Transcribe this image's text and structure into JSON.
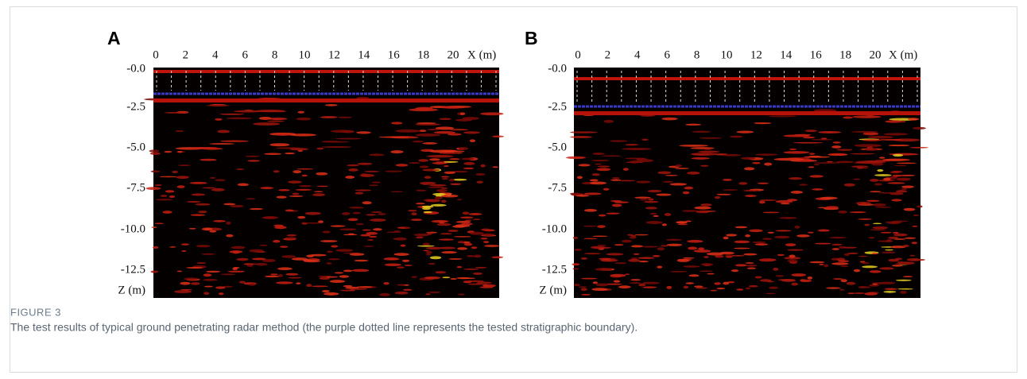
{
  "figure": {
    "panels": [
      {
        "label": "A",
        "x_ticks": [
          "0",
          "2",
          "4",
          "6",
          "8",
          "10",
          "12",
          "14",
          "16",
          "18",
          "20"
        ],
        "x_axis_label": "X (m)",
        "y_ticks": [
          "-0.0",
          "-2.5",
          "-5.0",
          "-7.5",
          "-10.0",
          "-12.5"
        ],
        "y_axis_label": "Z (m)"
      },
      {
        "label": "B",
        "x_ticks": [
          "0",
          "2",
          "4",
          "6",
          "8",
          "10",
          "12",
          "14",
          "16",
          "18",
          "20"
        ],
        "x_axis_label": "X (m)",
        "y_ticks": [
          "-0.0",
          "-2.5",
          "-5.0",
          "-7.5",
          "-10.0",
          "-12.5"
        ],
        "y_axis_label": "Z (m)"
      }
    ],
    "caption": {
      "label": "FIGURE 3",
      "text": "The test results of typical ground penetrating radar method (the purple dotted line represents the tested stratigraphic boundary)."
    }
  }
}
